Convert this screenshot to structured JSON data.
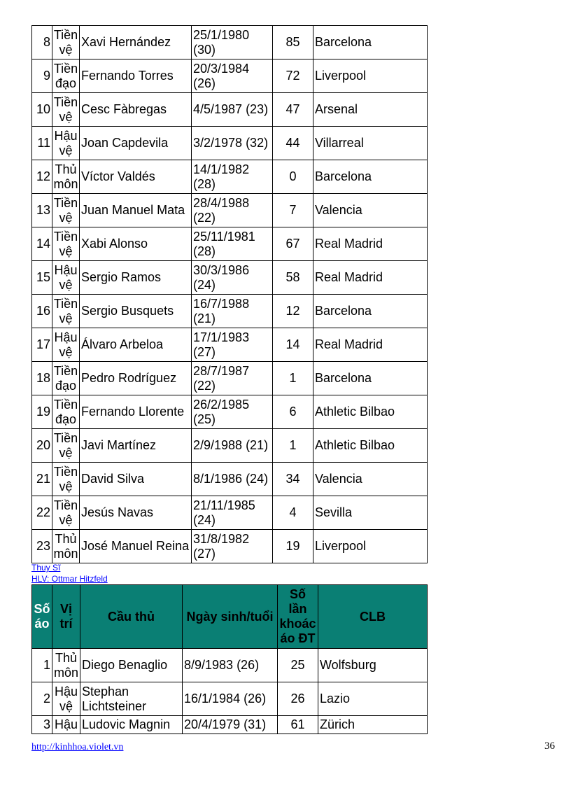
{
  "spain_table": {
    "rows": [
      [
        "8",
        "Tiền vệ",
        "Xavi Hernández",
        "25/1/1980 (30)",
        "85",
        "Barcelona"
      ],
      [
        "9",
        "Tiền đạo",
        "Fernando Torres",
        "20/3/1984 (26)",
        "72",
        "Liverpool"
      ],
      [
        "10",
        "Tiền vệ",
        "Cesc Fàbregas",
        "4/5/1987 (23)",
        "47",
        "Arsenal"
      ],
      [
        "11",
        "Hậu vệ",
        "Joan Capdevila",
        "3/2/1978 (32)",
        "44",
        "Villarreal"
      ],
      [
        "12",
        "Thủ môn",
        "Víctor Valdés",
        "14/1/1982 (28)",
        "0",
        "Barcelona"
      ],
      [
        "13",
        "Tiền vệ",
        "Juan Manuel Mata",
        "28/4/1988 (22)",
        "7",
        "Valencia"
      ],
      [
        "14",
        "Tiền vệ",
        "Xabi Alonso",
        "25/11/1981 (28)",
        "67",
        "Real Madrid"
      ],
      [
        "15",
        "Hậu vệ",
        "Sergio Ramos",
        "30/3/1986 (24)",
        "58",
        "Real Madrid"
      ],
      [
        "16",
        "Tiền vệ",
        "Sergio Busquets",
        "16/7/1988 (21)",
        "12",
        "Barcelona"
      ],
      [
        "17",
        "Hậu vệ",
        "Álvaro Arbeloa",
        "17/1/1983 (27)",
        "14",
        "Real Madrid"
      ],
      [
        "18",
        "Tiền đạo",
        "Pedro Rodríguez",
        "28/7/1987 (22)",
        "1",
        "Barcelona"
      ],
      [
        "19",
        "Tiền đạo",
        "Fernando Llorente",
        "26/2/1985 (25)",
        "6",
        "Athletic Bilbao"
      ],
      [
        "20",
        "Tiền vệ",
        "Javi Martínez",
        "2/9/1988 (21)",
        "1",
        "Athletic Bilbao"
      ],
      [
        "21",
        "Tiền vệ",
        "David Silva",
        "8/1/1986 (24)",
        "34",
        "Valencia"
      ],
      [
        "22",
        "Tiền vệ",
        "Jesús Navas",
        "21/11/1985 (24)",
        "4",
        "Sevilla"
      ],
      [
        "23",
        "Thủ môn",
        "José Manuel Reina",
        "31/8/1982 (27)",
        "19",
        "Liverpool"
      ]
    ]
  },
  "team_link": "Thuy Sĩ",
  "coach_link": "HLV: Ottmar Hitzfeld",
  "swiss_table": {
    "headers": [
      "Số áo",
      "Vị trí",
      "Cầu thủ",
      "Ngày sinh/tuổi",
      "Số lần khoác áo ĐT",
      "CLB"
    ],
    "header_color": "#0a7f74",
    "rows": [
      [
        "1",
        "Thủ môn",
        "Diego Benaglio",
        "8/9/1983 (26)",
        "25",
        "Wolfsburg"
      ],
      [
        "2",
        "Hậu vệ",
        "Stephan Lichtsteiner",
        "16/1/1984 (26)",
        "26",
        "Lazio"
      ],
      [
        "3",
        "Hậu",
        "Ludovic Magnin",
        "20/4/1979 (31)",
        "61",
        "Zürich"
      ]
    ]
  },
  "footer": {
    "url": "http://kinhhoa.violet.vn",
    "page_number": "36"
  }
}
